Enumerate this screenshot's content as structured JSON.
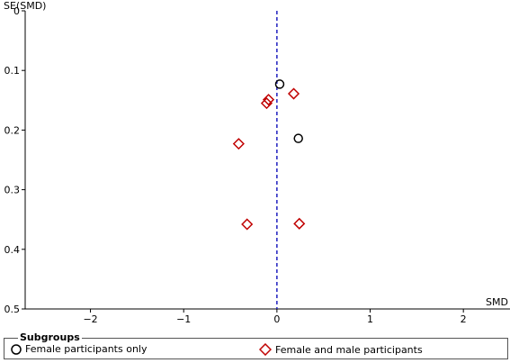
{
  "chart_data": {
    "type": "scatter",
    "title": "",
    "xlabel": "SMD",
    "ylabel": "SE(SMD)",
    "xlim": [
      -2.7,
      2.5
    ],
    "ylim": [
      0,
      0.5
    ],
    "y_inverted": true,
    "x_ticks": [
      -2,
      -1,
      0,
      1,
      2
    ],
    "x_tick_labels": [
      "−2",
      "−1",
      "0",
      "1",
      "2"
    ],
    "y_ticks": [
      0,
      0.1,
      0.2,
      0.3,
      0.4,
      0.5
    ],
    "y_tick_labels": [
      "0",
      "0.1",
      "0.2",
      "0.3",
      "0.4",
      "0.5"
    ],
    "reference_line": {
      "x": 0,
      "style": "dashed",
      "color": "#1f1fbf"
    },
    "series": [
      {
        "name": "Female participants only",
        "marker": "circle",
        "color": "#000000",
        "points": [
          {
            "x": 0.03,
            "y": 0.123
          },
          {
            "x": 0.23,
            "y": 0.214
          }
        ]
      },
      {
        "name": "Female and male participants",
        "marker": "diamond",
        "color": "#c00000",
        "points": [
          {
            "x": -0.09,
            "y": 0.149
          },
          {
            "x": -0.11,
            "y": 0.155
          },
          {
            "x": 0.18,
            "y": 0.139
          },
          {
            "x": -0.41,
            "y": 0.223
          },
          {
            "x": -0.32,
            "y": 0.358
          },
          {
            "x": 0.24,
            "y": 0.357
          }
        ]
      }
    ],
    "legend": {
      "title": "Subgroups",
      "placement": "bottom"
    }
  }
}
